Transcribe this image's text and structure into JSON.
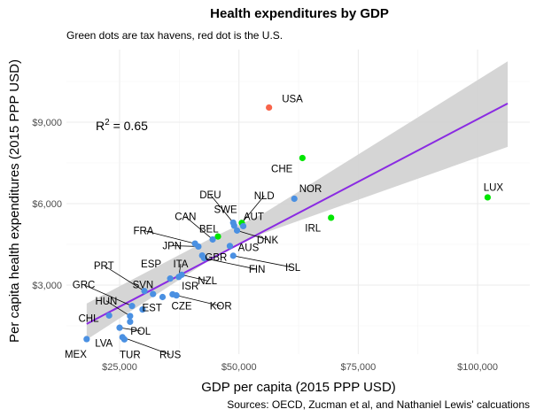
{
  "chart_data": {
    "type": "scatter",
    "title": "Health expenditures by GDP",
    "subtitle": "Green dots are tax havens, red dot is the U.S.",
    "xlabel": "GDP per capita (2015 PPP USD)",
    "ylabel": "Per capita health expenditures (2015 PPP USD)",
    "caption": "Sources: OECD, Zucman et al, and Nathaniel Lewis' calcuations",
    "annotation": {
      "text": "R",
      "superscript": "2",
      "rest": " = 0.65",
      "x": 20000,
      "y": 8900
    },
    "xlim": [
      13000,
      107000
    ],
    "ylim": [
      450,
      10800
    ],
    "x_ticks": [
      {
        "value": 25000,
        "label": "$25,000"
      },
      {
        "value": 50000,
        "label": "$50,000"
      },
      {
        "value": 75000,
        "label": "$75,000"
      },
      {
        "value": 100000,
        "label": "$100,000"
      }
    ],
    "y_ticks": [
      {
        "value": 3000,
        "label": "$3,000"
      },
      {
        "value": 6000,
        "label": "$6,000"
      },
      {
        "value": 9000,
        "label": "$9,000"
      }
    ],
    "grid": true,
    "colors": {
      "normal": "#4a90e2",
      "tax_haven": "#00e600",
      "usa": "#f8644a",
      "fit_line": "#8a2be2",
      "ribbon": "#d3d3d3"
    },
    "fit": {
      "x": [
        18100,
        106300
      ],
      "y": [
        1570,
        9690
      ],
      "ribbon_lower": [
        [
          18100,
          990
        ],
        [
          45000,
          4050
        ],
        [
          55000,
          4900
        ],
        [
          106300,
          8090
        ]
      ],
      "ribbon_upper": [
        [
          106300,
          11240
        ],
        [
          55000,
          5620
        ],
        [
          45000,
          4800
        ],
        [
          18100,
          2320
        ]
      ]
    },
    "points": [
      {
        "label": "USA",
        "x": 56300,
        "y": 9540,
        "group": "usa",
        "lx": 59000,
        "ly": 9730,
        "anchor": "start"
      },
      {
        "label": "CHE",
        "x": 63300,
        "y": 7680,
        "group": "tax_haven",
        "lx": 59000,
        "ly": 7150,
        "anchor": "middle"
      },
      {
        "label": "LUX",
        "x": 102100,
        "y": 6230,
        "group": "tax_haven",
        "lx": 103300,
        "ly": 6470,
        "anchor": "middle"
      },
      {
        "label": "IRL",
        "x": 69300,
        "y": 5480,
        "group": "tax_haven",
        "lx": 65500,
        "ly": 4980,
        "anchor": "middle"
      },
      {
        "label": "NOR",
        "x": 61600,
        "y": 6180,
        "group": "normal",
        "lx": 65000,
        "ly": 6430,
        "anchor": "middle"
      },
      {
        "label": "NLD",
        "x": 50600,
        "y": 5290,
        "group": "tax_haven",
        "lx": 55300,
        "ly": 6160,
        "anchor": "middle",
        "leader": true
      },
      {
        "label": "AUT",
        "x": 50900,
        "y": 5170,
        "group": "normal",
        "lx": 53100,
        "ly": 5400,
        "anchor": "middle"
      },
      {
        "label": "DEU",
        "x": 48800,
        "y": 5300,
        "group": "normal",
        "lx": 44000,
        "ly": 6200,
        "anchor": "middle",
        "leader": true
      },
      {
        "label": "SWE",
        "x": 49000,
        "y": 5190,
        "group": "normal",
        "lx": 47200,
        "ly": 5650,
        "anchor": "middle"
      },
      {
        "label": "DNK",
        "x": 49600,
        "y": 5010,
        "group": "normal",
        "lx": 56000,
        "ly": 4540,
        "anchor": "middle",
        "leader": true
      },
      {
        "label": "BEL",
        "x": 45600,
        "y": 4790,
        "group": "tax_haven",
        "lx": 43700,
        "ly": 4940,
        "anchor": "middle"
      },
      {
        "label": "CAN",
        "x": 44500,
        "y": 4680,
        "group": "normal",
        "lx": 38800,
        "ly": 5390,
        "anchor": "middle",
        "leader": true
      },
      {
        "label": "FRA",
        "x": 40800,
        "y": 4530,
        "group": "normal",
        "lx": 30000,
        "ly": 4880,
        "anchor": "middle",
        "leader": true
      },
      {
        "label": "JPN",
        "x": 41500,
        "y": 4420,
        "group": "normal",
        "lx": 36000,
        "ly": 4320,
        "anchor": "middle",
        "leader": true
      },
      {
        "label": "AUS",
        "x": 48100,
        "y": 4440,
        "group": "normal",
        "lx": 52000,
        "ly": 4250,
        "anchor": "middle"
      },
      {
        "label": "GBR",
        "x": 42300,
        "y": 4090,
        "group": "normal",
        "lx": 45200,
        "ly": 3900,
        "anchor": "middle"
      },
      {
        "label": "FIN",
        "x": 42700,
        "y": 3990,
        "group": "normal",
        "lx": 53800,
        "ly": 3450,
        "anchor": "middle",
        "leader": true
      },
      {
        "label": "ISL",
        "x": 48800,
        "y": 4080,
        "group": "normal",
        "lx": 61300,
        "ly": 3520,
        "anchor": "middle",
        "leader": true
      },
      {
        "label": "ITA",
        "x": 37400,
        "y": 3300,
        "group": "normal",
        "lx": 37800,
        "ly": 3650,
        "anchor": "middle",
        "leader": true
      },
      {
        "label": "NZL",
        "x": 38000,
        "y": 3380,
        "group": "normal",
        "lx": 43400,
        "ly": 3030,
        "anchor": "middle",
        "leader": true
      },
      {
        "label": "ESP",
        "x": 35600,
        "y": 3240,
        "group": "normal",
        "lx": 31600,
        "ly": 3660,
        "anchor": "middle"
      },
      {
        "label": "PRT",
        "x": 30200,
        "y": 2780,
        "group": "normal",
        "lx": 21700,
        "ly": 3590,
        "anchor": "middle",
        "leader": true
      },
      {
        "label": "SVN",
        "x": 32000,
        "y": 2670,
        "group": "normal",
        "lx": 29900,
        "ly": 2880,
        "anchor": "middle"
      },
      {
        "label": "ISR",
        "x": 34000,
        "y": 2560,
        "group": "normal",
        "lx": 39800,
        "ly": 2830,
        "anchor": "middle"
      },
      {
        "label": "CZE",
        "x": 36100,
        "y": 2660,
        "group": "normal",
        "lx": 38000,
        "ly": 2100,
        "anchor": "middle"
      },
      {
        "label": "KOR",
        "x": 36900,
        "y": 2620,
        "group": "normal",
        "lx": 46200,
        "ly": 2100,
        "anchor": "middle",
        "leader": true
      },
      {
        "label": "GRC",
        "x": 27600,
        "y": 2230,
        "group": "normal",
        "lx": 17500,
        "ly": 2880,
        "anchor": "middle",
        "leader": true
      },
      {
        "label": "HUN",
        "x": 27200,
        "y": 1860,
        "group": "normal",
        "lx": 22200,
        "ly": 2290,
        "anchor": "middle",
        "leader": true
      },
      {
        "label": "EST",
        "x": 29800,
        "y": 2100,
        "group": "normal",
        "lx": 31800,
        "ly": 2030,
        "anchor": "middle"
      },
      {
        "label": "CHL",
        "x": 22800,
        "y": 1880,
        "group": "normal",
        "lx": 18500,
        "ly": 1650,
        "anchor": "middle"
      },
      {
        "label": "POL",
        "x": 25000,
        "y": 1430,
        "group": "normal",
        "lx": 29400,
        "ly": 1180,
        "anchor": "middle",
        "leader": true
      },
      {
        "label": "LVA",
        "x": 27200,
        "y": 1650,
        "group": "normal",
        "lx": 21700,
        "ly": 740,
        "anchor": "middle"
      },
      {
        "label": "TUR",
        "x": 26000,
        "y": 1000,
        "group": "normal",
        "lx": 27200,
        "ly": 310,
        "anchor": "middle"
      },
      {
        "label": "RUS",
        "x": 25600,
        "y": 1080,
        "group": "normal",
        "lx": 35600,
        "ly": 310,
        "anchor": "middle",
        "leader": true
      },
      {
        "label": "MEX",
        "x": 18100,
        "y": 1010,
        "group": "normal",
        "lx": 15800,
        "ly": 330,
        "anchor": "middle"
      }
    ]
  }
}
